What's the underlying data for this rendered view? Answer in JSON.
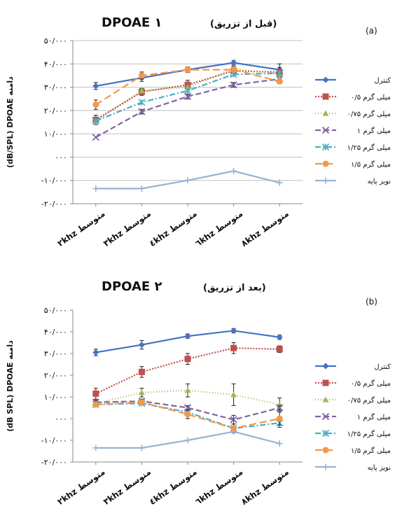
{
  "colors": {
    "control": "#4472c4",
    "s05": "#c0504d",
    "s075": "#9bbb59",
    "s1": "#8064a2",
    "s125": "#4bacc6",
    "s15": "#f79646",
    "noise": "#95b3d7"
  },
  "chart_data": [
    {
      "type": "line",
      "panel_label": "(a)",
      "title_main": "DPOAE ۱",
      "title_sub": "(قبل از تزریق)",
      "ylabel": "(dB/SPL) DPOAE دامنه",
      "xlabel": "",
      "ylim": [
        -20,
        50
      ],
      "y_ticks": [
        -20,
        -10,
        0,
        10,
        20,
        30,
        40,
        50
      ],
      "y_tick_labels": [
        "-۲۰/۰۰۰",
        "-۱۰/۰۰۰",
        "۰۰۰",
        "۱۰/۰۰۰",
        "۲۰/۰۰۰",
        "۳۰/۰۰۰",
        "۴۰/۰۰۰",
        "۵۰/۰۰۰"
      ],
      "categories": [
        "۲khz متوسط",
        "۳khz متوسط",
        "٤khz متوسط",
        "٦khz متوسط",
        "۸khz متوسط"
      ],
      "grid": true,
      "legend_position": "right",
      "series": [
        {
          "name": "کنترل",
          "values": [
            30.5,
            34,
            37.5,
            40.5,
            37.5
          ],
          "error": [
            1.5,
            1.5,
            1.2,
            1.0,
            2.5
          ],
          "color_key": "control",
          "marker": "diamond",
          "dash": ""
        },
        {
          "name": "۰/۵ میلی گرم",
          "values": [
            16,
            28,
            31,
            37,
            36.5
          ],
          "error": [
            2,
            1.5,
            2,
            2,
            2
          ],
          "color_key": "s05",
          "marker": "square",
          "dash": "2,2"
        },
        {
          "name": "۰/۷۵ میلی گرم",
          "values": [
            15.5,
            28.5,
            30,
            38,
            35.5
          ],
          "error": [
            0,
            0,
            0,
            0,
            0
          ],
          "color_key": "s075",
          "marker": "triangle",
          "dash": "1,3"
        },
        {
          "name": "۱ میلی گرم",
          "values": [
            8.5,
            19.5,
            26,
            31,
            33.5
          ],
          "error": [
            0,
            1,
            1,
            1,
            0
          ],
          "color_key": "s1",
          "marker": "x",
          "dash": "8,4"
        },
        {
          "name": "۱/۲۵ میلی گرم",
          "values": [
            15.5,
            23.5,
            28.5,
            35.5,
            36
          ],
          "error": [
            0,
            0,
            0,
            0,
            0
          ],
          "color_key": "s125",
          "marker": "asterisk",
          "dash": "8,3,2,3"
        },
        {
          "name": "۱/۵ میلی گرم",
          "values": [
            22.5,
            35,
            37.5,
            37.5,
            32.5
          ],
          "error": [
            2,
            1.5,
            1,
            1,
            1
          ],
          "color_key": "s15",
          "marker": "circle",
          "dash": "10,5"
        },
        {
          "name": "نویز پایه",
          "values": [
            -13.5,
            -13.5,
            -10,
            -6,
            -11
          ],
          "error": [
            0,
            0,
            0,
            0,
            0
          ],
          "color_key": "noise",
          "marker": "plus",
          "dash": ""
        }
      ]
    },
    {
      "type": "line",
      "panel_label": "(b)",
      "title_main": "DPOAE ۲",
      "title_sub": "(بعد از تزریق)",
      "ylabel": "(dB SPL) DPOAE دامنه",
      "xlabel": "",
      "ylim": [
        -20,
        50
      ],
      "y_ticks": [
        -20,
        -10,
        0,
        10,
        20,
        30,
        40,
        50
      ],
      "y_tick_labels": [
        "-۲۰/۰۰۰",
        "-۱۰/۰۰۰",
        "۰۰۰",
        "۱۰/۰۰۰",
        "۲۰/۰۰۰",
        "۳۰/۰۰۰",
        "۴۰/۰۰۰",
        "۵۰/۰۰۰"
      ],
      "categories": [
        "۲khz متوسط",
        "۳khz متوسط",
        "٤khz متوسط",
        "٦khz متوسط",
        "۸khz متوسط"
      ],
      "grid": false,
      "legend_position": "right",
      "series": [
        {
          "name": "کنترل",
          "values": [
            30.5,
            34,
            38,
            40.5,
            37.5
          ],
          "error": [
            1.5,
            2,
            1,
            1,
            1
          ],
          "color_key": "control",
          "marker": "diamond",
          "dash": ""
        },
        {
          "name": "۰/۵ میلی گرم",
          "values": [
            11.5,
            21.5,
            27.5,
            32.5,
            32
          ],
          "error": [
            2.5,
            2.5,
            2.5,
            2.5,
            1.5
          ],
          "color_key": "s05",
          "marker": "square",
          "dash": "2,2"
        },
        {
          "name": "۰/۷۵ میلی گرم",
          "values": [
            7,
            12,
            13,
            11,
            6.5
          ],
          "error": [
            1,
            2,
            3,
            5,
            3
          ],
          "color_key": "s075",
          "marker": "triangle",
          "dash": "1,3"
        },
        {
          "name": "۱ میلی گرم",
          "values": [
            7.5,
            8,
            5,
            -0.5,
            5
          ],
          "error": [
            1,
            1,
            1,
            2,
            1
          ],
          "color_key": "s1",
          "marker": "x",
          "dash": "8,4"
        },
        {
          "name": "۱/۲۵ میلی گرم",
          "values": [
            6.5,
            7,
            3,
            -4.5,
            -2
          ],
          "error": [
            0,
            0,
            1,
            2,
            2
          ],
          "color_key": "s125",
          "marker": "asterisk",
          "dash": "8,3,2,3"
        },
        {
          "name": "۱/۵ میلی گرم",
          "values": [
            6.5,
            7.5,
            2,
            -4.5,
            0
          ],
          "error": [
            1,
            1,
            2,
            1,
            3
          ],
          "color_key": "s15",
          "marker": "circle",
          "dash": "10,5"
        },
        {
          "name": "نویز پایه",
          "values": [
            -13.5,
            -13.5,
            -10,
            -6,
            -11.5
          ],
          "error": [
            0,
            0,
            0,
            0,
            0
          ],
          "color_key": "noise",
          "marker": "plus",
          "dash": ""
        }
      ]
    }
  ]
}
